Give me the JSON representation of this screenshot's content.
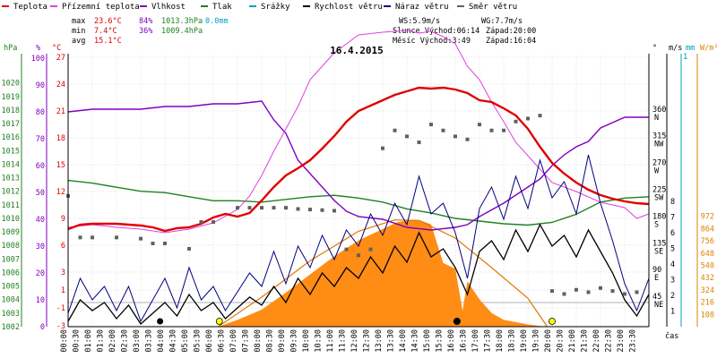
{
  "chart_data": {
    "type": "line",
    "title": "16.4.2015",
    "legend": [
      {
        "name": "Teplota",
        "color": "#e00000"
      },
      {
        "name": "Přízemní teplota",
        "color": "#e040e0"
      },
      {
        "name": "Vlhkost",
        "color": "#8000c0"
      },
      {
        "name": "Tlak",
        "color": "#208020"
      },
      {
        "name": "Srážky",
        "color": "#00a0c0"
      },
      {
        "name": "Rychlost větru",
        "color": "#000000"
      },
      {
        "name": "Náraz větru",
        "color": "#000080"
      },
      {
        "name": "Směr větru",
        "color": "#606060"
      }
    ],
    "stats": {
      "max": {
        "label": "max",
        "temp": "23.6°C",
        "hum": "84%",
        "press": "1013.3hPa",
        "rain": "0.0mm"
      },
      "min": {
        "label": "min",
        "temp": "7.4°C",
        "hum": "36%",
        "press": "1009.4hPa"
      },
      "avg": {
        "label": "avg",
        "temp": "15.1°C"
      }
    },
    "wind_info": {
      "ws": "WS:5.9m/s",
      "wg": "WG:7.7m/s"
    },
    "sun_info": {
      "rise": "Slunce Východ:06:14",
      "set": "Západ:20:00"
    },
    "moon_info": {
      "rise": "Měsíc  Východ:3:49",
      "set": "Západ:16:04"
    },
    "axis_unit_labels": {
      "hpa": "hPa",
      "pct": "%",
      "degc": "°C",
      "deg": "°",
      "ms": "m/s",
      "mm": "mm",
      "wm2": "W/m²",
      "time": "čas"
    },
    "x_ticks": [
      "00:00",
      "00:30",
      "01:00",
      "01:30",
      "02:00",
      "02:30",
      "03:00",
      "03:30",
      "04:00",
      "04:30",
      "05:00",
      "05:30",
      "06:00",
      "06:30",
      "07:00",
      "07:30",
      "08:00",
      "08:30",
      "09:00",
      "09:30",
      "10:00",
      "10:30",
      "11:00",
      "11:30",
      "12:00",
      "12:30",
      "13:00",
      "13:30",
      "14:00",
      "14:30",
      "15:00",
      "15:30",
      "16:00",
      "16:30",
      "17:00",
      "17:30",
      "18:00",
      "18:30",
      "19:00",
      "19:30",
      "20:00",
      "20:30",
      "21:00",
      "21:30",
      "22:00",
      "22:30",
      "23:00",
      "23:30"
    ],
    "hpa_ticks": [
      "1020",
      "1019",
      "1018",
      "1017",
      "1016",
      "1015",
      "1014",
      "1013",
      "1012",
      "1011",
      "1010",
      "1009",
      "1008",
      "1007",
      "1006",
      "1005",
      "1004",
      "1003",
      "1002"
    ],
    "pct_ticks": [
      "100",
      "90",
      "80",
      "70",
      "60",
      "50",
      "40",
      "30",
      "20",
      "10",
      "0"
    ],
    "degc_ticks": [
      "27",
      "24",
      "21",
      "18",
      "15",
      "12",
      "9",
      "6",
      "3",
      "1",
      "-1",
      "-3"
    ],
    "deg_ticks": [
      {
        "v": "360",
        "d": "N"
      },
      {
        "v": "315",
        "d": "NW"
      },
      {
        "v": "270",
        "d": "W"
      },
      {
        "v": "225",
        "d": "SW"
      },
      {
        "v": "180",
        "d": "S"
      },
      {
        "v": "135",
        "d": "SE"
      },
      {
        "v": "90",
        "d": "E"
      },
      {
        "v": "45",
        "d": "NE"
      }
    ],
    "ms_ticks": [
      "8",
      "7",
      "6",
      "5",
      "4",
      "3",
      "2",
      "1"
    ],
    "wm2_ticks": [
      "972",
      "864",
      "756",
      "648",
      "540",
      "432",
      "324",
      "216",
      "108"
    ],
    "mm_top": "1",
    "series_hours": {
      "temperature_c": [
        [
          0,
          7.8
        ],
        [
          0.5,
          8.3
        ],
        [
          1,
          8.4
        ],
        [
          2,
          8.4
        ],
        [
          3,
          8.2
        ],
        [
          3.5,
          8.0
        ],
        [
          4,
          7.6
        ],
        [
          4.5,
          7.9
        ],
        [
          5,
          8.0
        ],
        [
          5.5,
          8.4
        ],
        [
          6,
          9.1
        ],
        [
          6.5,
          9.5
        ],
        [
          7,
          9.2
        ],
        [
          7.5,
          9.6
        ],
        [
          8,
          11.0
        ],
        [
          8.5,
          12.5
        ],
        [
          9,
          13.8
        ],
        [
          9.5,
          14.6
        ],
        [
          10,
          15.5
        ],
        [
          10.5,
          16.8
        ],
        [
          11,
          18.2
        ],
        [
          11.5,
          19.8
        ],
        [
          12,
          21.0
        ],
        [
          12.5,
          21.6
        ],
        [
          13,
          22.2
        ],
        [
          13.5,
          22.8
        ],
        [
          14,
          23.2
        ],
        [
          14.5,
          23.6
        ],
        [
          15,
          23.5
        ],
        [
          15.5,
          23.6
        ],
        [
          16,
          23.4
        ],
        [
          16.5,
          23.0
        ],
        [
          17,
          22.2
        ],
        [
          17.5,
          22.0
        ],
        [
          18,
          21.3
        ],
        [
          18.5,
          20.5
        ],
        [
          19,
          19.0
        ],
        [
          19.5,
          17.0
        ],
        [
          20,
          15.2
        ],
        [
          20.5,
          14.0
        ],
        [
          21,
          13.0
        ],
        [
          21.5,
          12.2
        ],
        [
          22,
          11.6
        ],
        [
          22.5,
          11.2
        ],
        [
          23,
          10.9
        ],
        [
          23.5,
          10.7
        ],
        [
          24,
          10.6
        ]
      ],
      "ground_temp_c": [
        [
          0,
          8.0
        ],
        [
          1,
          8.3
        ],
        [
          2,
          8.0
        ],
        [
          3,
          7.8
        ],
        [
          4,
          7.4
        ],
        [
          5,
          7.8
        ],
        [
          6,
          8.5
        ],
        [
          7,
          10.0
        ],
        [
          7.5,
          11.5
        ],
        [
          8,
          13.8
        ],
        [
          8.5,
          16.5
        ],
        [
          9,
          19.0
        ],
        [
          9.5,
          21.5
        ],
        [
          10,
          24.5
        ],
        [
          10.5,
          26.0
        ],
        [
          11,
          27.5
        ],
        [
          11.5,
          28.5
        ],
        [
          12,
          29.5
        ],
        [
          13,
          29.8
        ],
        [
          14,
          30.0
        ],
        [
          14.5,
          29.7
        ],
        [
          15,
          29.9
        ],
        [
          15.5,
          29.3
        ],
        [
          16,
          28.5
        ],
        [
          16.5,
          26.0
        ],
        [
          17,
          24.5
        ],
        [
          17.5,
          22.0
        ],
        [
          18,
          19.8
        ],
        [
          18.5,
          17.5
        ],
        [
          19,
          16.0
        ],
        [
          19.5,
          14.5
        ],
        [
          20,
          13.0
        ],
        [
          21,
          12.0
        ],
        [
          22,
          10.8
        ],
        [
          23,
          10.2
        ],
        [
          23.5,
          9.0
        ],
        [
          24,
          9.5
        ]
      ],
      "humidity_pct": [
        [
          0,
          80
        ],
        [
          1,
          81
        ],
        [
          2,
          81
        ],
        [
          3,
          81
        ],
        [
          4,
          82
        ],
        [
          5,
          82
        ],
        [
          6,
          83
        ],
        [
          7,
          83
        ],
        [
          8,
          84
        ],
        [
          8.5,
          77
        ],
        [
          9,
          72
        ],
        [
          9.5,
          62
        ],
        [
          10,
          57
        ],
        [
          10.5,
          52
        ],
        [
          11,
          47
        ],
        [
          11.5,
          43
        ],
        [
          12,
          41
        ],
        [
          13,
          40
        ],
        [
          14,
          37
        ],
        [
          15,
          36
        ],
        [
          16,
          37
        ],
        [
          16.5,
          38
        ],
        [
          17,
          41
        ],
        [
          18,
          46
        ],
        [
          19,
          52
        ],
        [
          19.5,
          55
        ],
        [
          20,
          60
        ],
        [
          20.5,
          64
        ],
        [
          21,
          67
        ],
        [
          21.5,
          69
        ],
        [
          22,
          74
        ],
        [
          23,
          78
        ],
        [
          23.5,
          78
        ],
        [
          24,
          78
        ]
      ],
      "pressure_hpa": [
        [
          0,
          1012.8
        ],
        [
          1,
          1012.6
        ],
        [
          2,
          1012.3
        ],
        [
          3,
          1012.0
        ],
        [
          4,
          1011.9
        ],
        [
          5,
          1011.6
        ],
        [
          6,
          1011.3
        ],
        [
          7,
          1011.3
        ],
        [
          8,
          1011.2
        ],
        [
          9,
          1011.4
        ],
        [
          10,
          1011.6
        ],
        [
          11,
          1011.7
        ],
        [
          12,
          1011.5
        ],
        [
          13,
          1011.2
        ],
        [
          14,
          1010.7
        ],
        [
          15,
          1010.4
        ],
        [
          16,
          1010.0
        ],
        [
          17,
          1009.8
        ],
        [
          18,
          1009.6
        ],
        [
          19,
          1009.5
        ],
        [
          20,
          1009.7
        ],
        [
          21,
          1010.3
        ],
        [
          22,
          1011.2
        ],
        [
          23,
          1011.5
        ],
        [
          24,
          1011.6
        ]
      ],
      "wind_speed_ms": [
        [
          0,
          0.2
        ],
        [
          0.5,
          1.0
        ],
        [
          1,
          0.6
        ],
        [
          1.5,
          0.9
        ],
        [
          2,
          0.3
        ],
        [
          2.5,
          0.8
        ],
        [
          3,
          0.1
        ],
        [
          3.5,
          0.5
        ],
        [
          4,
          0.9
        ],
        [
          4.5,
          0.4
        ],
        [
          5,
          1.2
        ],
        [
          5.5,
          0.6
        ],
        [
          6,
          0.9
        ],
        [
          6.5,
          0.3
        ],
        [
          7,
          0.7
        ],
        [
          7.5,
          1.1
        ],
        [
          8,
          0.8
        ],
        [
          8.5,
          1.5
        ],
        [
          9,
          0.9
        ],
        [
          9.5,
          1.8
        ],
        [
          10,
          1.2
        ],
        [
          10.5,
          2.0
        ],
        [
          11,
          1.5
        ],
        [
          11.5,
          2.2
        ],
        [
          12,
          1.8
        ],
        [
          12.5,
          2.6
        ],
        [
          13,
          2.0
        ],
        [
          13.5,
          3.0
        ],
        [
          14,
          2.4
        ],
        [
          14.5,
          3.5
        ],
        [
          15,
          2.6
        ],
        [
          15.5,
          2.9
        ],
        [
          16,
          2.2
        ],
        [
          16.5,
          1.2
        ],
        [
          17,
          2.8
        ],
        [
          17.5,
          3.2
        ],
        [
          18,
          2.5
        ],
        [
          18.5,
          3.6
        ],
        [
          19,
          2.8
        ],
        [
          19.5,
          3.8
        ],
        [
          20,
          3.0
        ],
        [
          20.5,
          3.4
        ],
        [
          21,
          2.6
        ],
        [
          21.5,
          3.6
        ],
        [
          22,
          2.8
        ],
        [
          22.5,
          2.0
        ],
        [
          23,
          1.0
        ],
        [
          23.5,
          0.4
        ],
        [
          24,
          1.2
        ]
      ],
      "wind_gust_ms": [
        [
          0,
          0.5
        ],
        [
          0.5,
          1.8
        ],
        [
          1,
          1.0
        ],
        [
          1.5,
          1.5
        ],
        [
          2,
          0.6
        ],
        [
          2.5,
          1.5
        ],
        [
          3,
          0.2
        ],
        [
          3.5,
          1.0
        ],
        [
          4,
          1.8
        ],
        [
          4.5,
          0.7
        ],
        [
          5,
          2.2
        ],
        [
          5.5,
          1.0
        ],
        [
          6,
          1.5
        ],
        [
          6.5,
          0.6
        ],
        [
          7,
          1.3
        ],
        [
          7.5,
          2.0
        ],
        [
          8,
          1.5
        ],
        [
          8.5,
          2.8
        ],
        [
          9,
          1.6
        ],
        [
          9.5,
          3.0
        ],
        [
          10,
          2.2
        ],
        [
          10.5,
          3.4
        ],
        [
          11,
          2.5
        ],
        [
          11.5,
          3.6
        ],
        [
          12,
          3.0
        ],
        [
          12.5,
          4.2
        ],
        [
          13,
          3.4
        ],
        [
          13.5,
          4.6
        ],
        [
          14,
          3.8
        ],
        [
          14.5,
          5.6
        ],
        [
          15,
          4.2
        ],
        [
          15.5,
          4.6
        ],
        [
          16,
          3.5
        ],
        [
          16.5,
          1.8
        ],
        [
          17,
          4.4
        ],
        [
          17.5,
          5.2
        ],
        [
          18,
          4.0
        ],
        [
          18.5,
          5.6
        ],
        [
          19,
          4.4
        ],
        [
          19.5,
          6.2
        ],
        [
          20,
          4.8
        ],
        [
          20.5,
          5.4
        ],
        [
          21,
          4.2
        ],
        [
          21.5,
          6.4
        ],
        [
          22,
          4.6
        ],
        [
          22.5,
          3.2
        ],
        [
          23,
          1.6
        ],
        [
          23.5,
          0.6
        ],
        [
          24,
          1.8
        ]
      ],
      "wind_dir_deg": [
        [
          0,
          220
        ],
        [
          0.5,
          150
        ],
        [
          1,
          150
        ],
        [
          2,
          150
        ],
        [
          3,
          148
        ],
        [
          3.5,
          140
        ],
        [
          4,
          140
        ],
        [
          5,
          131
        ],
        [
          5.5,
          176
        ],
        [
          6,
          176
        ],
        [
          7,
          200
        ],
        [
          7.5,
          200
        ],
        [
          8,
          200
        ],
        [
          8.5,
          200
        ],
        [
          9,
          200
        ],
        [
          9.5,
          198
        ],
        [
          10,
          197
        ],
        [
          10.5,
          196
        ],
        [
          11,
          195
        ],
        [
          11.5,
          130
        ],
        [
          12,
          120
        ],
        [
          12.5,
          130
        ],
        [
          13,
          300
        ],
        [
          13.5,
          330
        ],
        [
          14,
          320
        ],
        [
          14.5,
          310
        ],
        [
          15,
          340
        ],
        [
          15.5,
          330
        ],
        [
          16,
          320
        ],
        [
          16.5,
          315
        ],
        [
          17,
          340
        ],
        [
          17.5,
          330
        ],
        [
          18,
          330
        ],
        [
          18.5,
          345
        ],
        [
          19,
          350
        ],
        [
          19.5,
          355
        ],
        [
          20,
          60
        ],
        [
          20.5,
          55
        ],
        [
          21,
          62
        ],
        [
          21.5,
          58
        ],
        [
          22,
          65
        ],
        [
          22.5,
          60
        ],
        [
          23,
          55
        ],
        [
          23.5,
          58
        ]
      ],
      "solar_wm2": [
        [
          6.2,
          0
        ],
        [
          7,
          60
        ],
        [
          8,
          150
        ],
        [
          9,
          300
        ],
        [
          10,
          460
        ],
        [
          11,
          620
        ],
        [
          12,
          760
        ],
        [
          13,
          860
        ],
        [
          13.6,
          920
        ],
        [
          14,
          936
        ],
        [
          14.5,
          940
        ],
        [
          15,
          900
        ],
        [
          15.5,
          560
        ],
        [
          16,
          510
        ],
        [
          16.3,
          140
        ],
        [
          16.5,
          400
        ],
        [
          17,
          240
        ],
        [
          17.5,
          120
        ],
        [
          18,
          60
        ],
        [
          18.5,
          40
        ],
        [
          19,
          20
        ],
        [
          19.7,
          0
        ]
      ],
      "clear_sky_wm2": [
        [
          6.2,
          0
        ],
        [
          8,
          260
        ],
        [
          10,
          580
        ],
        [
          12,
          840
        ],
        [
          13.5,
          940
        ],
        [
          14.5,
          935
        ],
        [
          16,
          780
        ],
        [
          17.5,
          520
        ],
        [
          19,
          250
        ],
        [
          19.8,
          0
        ]
      ]
    }
  }
}
